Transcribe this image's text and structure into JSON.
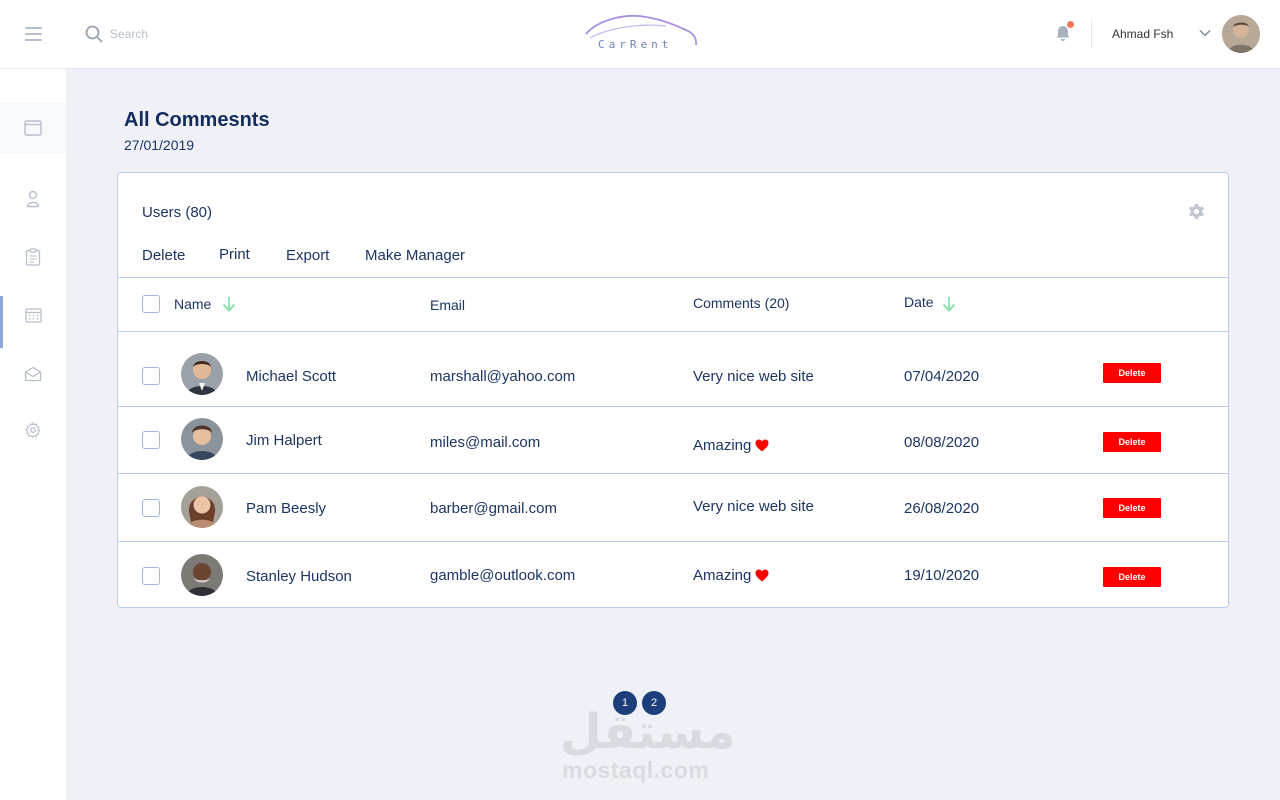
{
  "header": {
    "search_placeholder": "Search",
    "logo_text": "CarRent",
    "user_name": "Ahmad Fsh"
  },
  "page": {
    "title": "All Commesnts",
    "date": "27/01/2019"
  },
  "card": {
    "title": "Users (80)",
    "actions": [
      "Delete",
      "Print",
      "Export",
      "Make Manager"
    ],
    "columns": {
      "name": "Name",
      "email": "Email",
      "comments": "Comments (20)",
      "date": "Date"
    },
    "delete_label": "Delete",
    "rows": [
      {
        "name": "Michael Scott",
        "email": "marshall@yahoo.com",
        "comment": "Very nice web site",
        "heart": false,
        "date": "07/04/2020"
      },
      {
        "name": "Jim Halpert",
        "email": "miles@mail.com",
        "comment": "Amazing",
        "heart": true,
        "date": "08/08/2020"
      },
      {
        "name": "Pam Beesly",
        "email": "barber@gmail.com",
        "comment": "Very nice web site",
        "heart": false,
        "date": "26/08/2020"
      },
      {
        "name": "Stanley Hudson",
        "email": "gamble@outlook.com",
        "comment": "Amazing",
        "heart": true,
        "date": "19/10/2020"
      }
    ]
  },
  "pagination": [
    "1",
    "2"
  ],
  "watermark": {
    "arabic": "مستقل",
    "latin": "mostaql.com"
  },
  "colors": {
    "accent": "#1c3f7c",
    "delete": "#ff0000",
    "sort_arrow": "#7ee0a4",
    "notification_dot": "#f37a5a"
  }
}
